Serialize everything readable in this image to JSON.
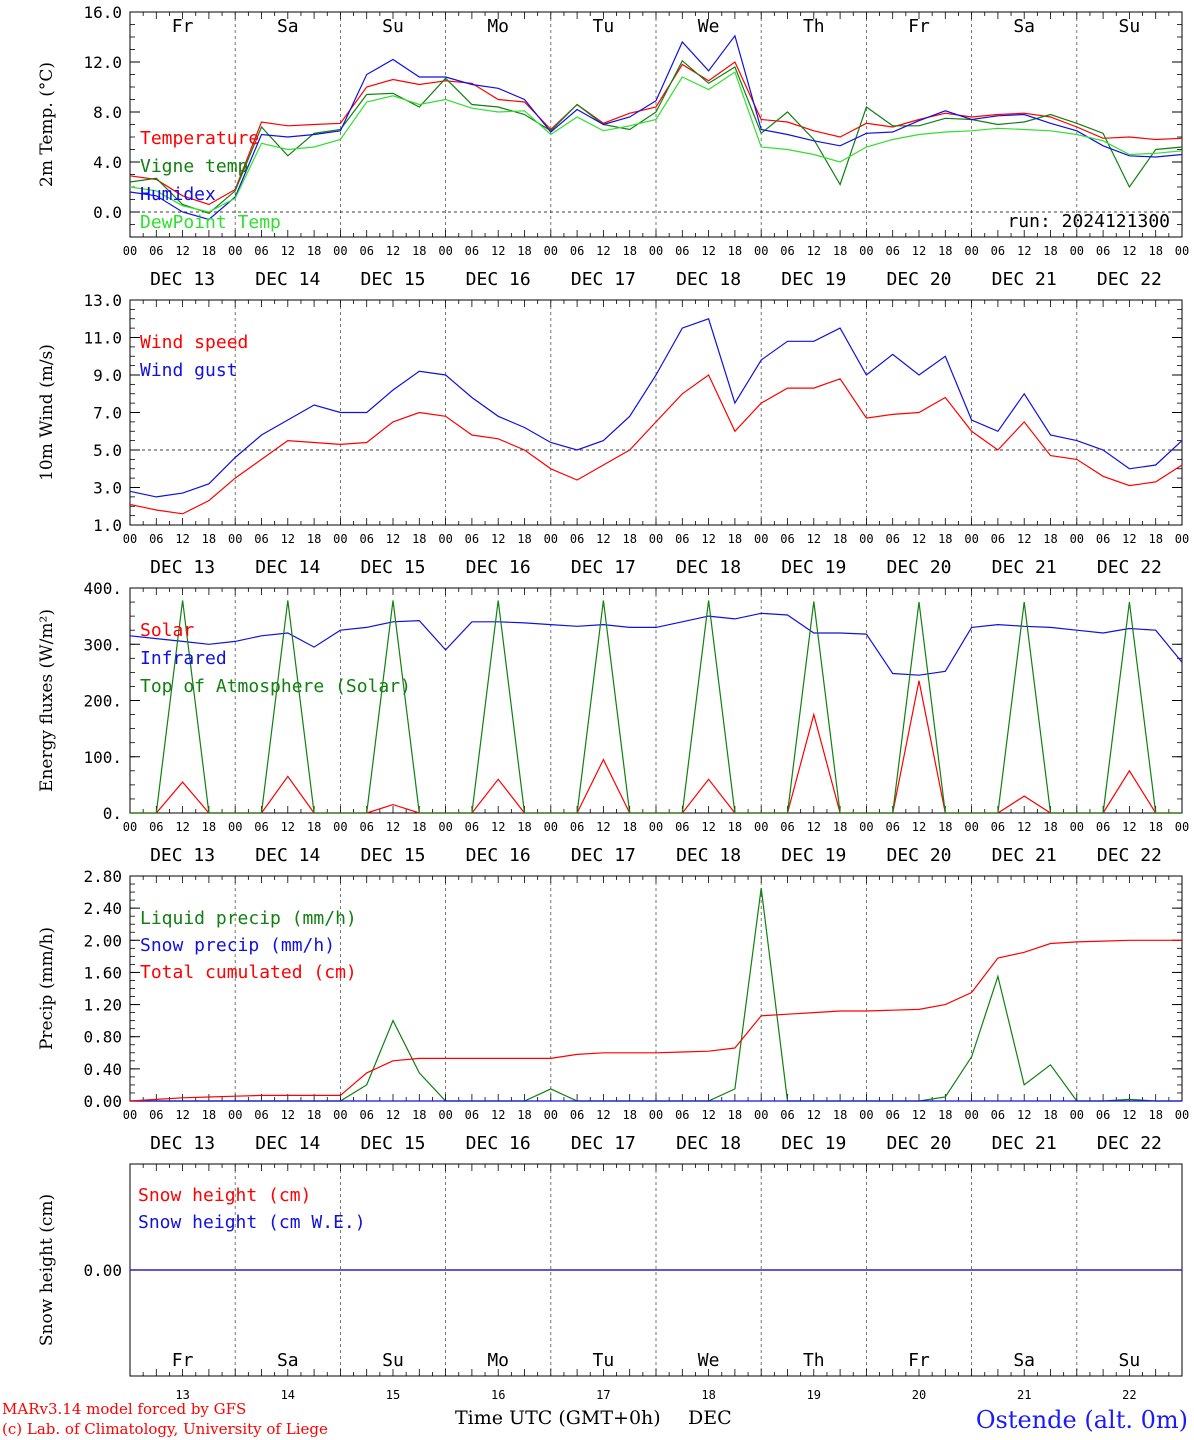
{
  "colors": {
    "red": "#ff0000",
    "green": "#108010",
    "blue": "#1010e0",
    "lightgreen": "#30e030"
  },
  "days": [
    "13",
    "14",
    "15",
    "16",
    "17",
    "18",
    "19",
    "20",
    "21",
    "22"
  ],
  "weekdays": [
    {
      "label": "Fr",
      "color": "#000000"
    },
    {
      "label": "Sa",
      "color": "#ff0000"
    },
    {
      "label": "Su",
      "color": "#ff0000"
    },
    {
      "label": "Mo",
      "color": "#000000"
    },
    {
      "label": "Tu",
      "color": "#000000"
    },
    {
      "label": "We",
      "color": "#000000"
    },
    {
      "label": "Th",
      "color": "#000000"
    },
    {
      "label": "Fr",
      "color": "#000000"
    },
    {
      "label": "Sa",
      "color": "#ff0000"
    },
    {
      "label": "Su",
      "color": "#ff0000"
    }
  ],
  "hour_labels": [
    "00",
    "06",
    "12",
    "18"
  ],
  "date_labels": [
    "DEC 13",
    "DEC 14",
    "DEC 15",
    "DEC 16",
    "DEC 17",
    "DEC 18",
    "DEC 19",
    "DEC 20",
    "DEC 21",
    "DEC 22"
  ],
  "footer": {
    "model": "MARv3.14 model forced by GFS",
    "lab": "(c) Lab. of Climatology, University of Liege",
    "xtitle": "Time UTC (GMT+0h)",
    "month": "DEC",
    "station": "Ostende (alt. 0m)"
  },
  "chart_data": [
    {
      "type": "line",
      "ylabel": "2m Temp. (°C)",
      "ylim": [
        -2,
        16
      ],
      "yticks": [
        "16.0",
        "12.0",
        "8.0",
        "4.0",
        "0.0"
      ],
      "ytick_values": [
        16,
        12,
        8,
        4,
        0
      ],
      "dashed_y": 0,
      "annotation": "run: 2024121300",
      "x": [
        0,
        6,
        12,
        18,
        24,
        30,
        36,
        42,
        48,
        54,
        60,
        66,
        72,
        78,
        84,
        90,
        96,
        102,
        108,
        114,
        120,
        126,
        132,
        138,
        144,
        150,
        156,
        162,
        168,
        174,
        180,
        186,
        192,
        198,
        204,
        210,
        216,
        222,
        228,
        234,
        240
      ],
      "series": [
        {
          "name": "Temperature",
          "color": "#ff0000",
          "values": [
            2.9,
            2.6,
            1.3,
            0.6,
            1.8,
            7.2,
            6.9,
            7.0,
            7.1,
            10.0,
            10.6,
            10.2,
            10.5,
            10.3,
            9.0,
            8.8,
            6.6,
            8.6,
            7.1,
            7.9,
            8.4,
            11.8,
            10.5,
            12.0,
            7.4,
            7.2,
            6.5,
            6.0,
            7.1,
            6.8,
            7.4,
            7.9,
            7.6,
            7.8,
            7.9,
            7.6,
            6.8,
            5.9,
            6.0,
            5.8,
            5.9
          ]
        },
        {
          "name": "Vigne temp",
          "color": "#108010",
          "values": [
            2.4,
            2.7,
            0.6,
            -0.1,
            1.7,
            6.8,
            4.5,
            6.3,
            6.6,
            9.4,
            9.5,
            8.4,
            10.7,
            8.6,
            8.4,
            7.8,
            6.5,
            8.6,
            7.0,
            6.6,
            8.0,
            12.1,
            10.3,
            11.6,
            6.3,
            8.0,
            5.8,
            2.2,
            8.4,
            6.9,
            6.9,
            7.5,
            7.4,
            7.0,
            7.2,
            7.8,
            7.1,
            6.3,
            2.0,
            5.0,
            5.2
          ]
        },
        {
          "name": "Humidex",
          "color": "#1010e0",
          "values": [
            1.6,
            1.3,
            0.0,
            -0.6,
            1.2,
            6.2,
            6.0,
            6.2,
            6.5,
            11.0,
            12.2,
            10.8,
            10.8,
            10.2,
            9.9,
            9.0,
            6.4,
            8.2,
            7.0,
            7.6,
            8.9,
            13.6,
            11.3,
            14.1,
            6.6,
            6.2,
            5.7,
            5.3,
            6.3,
            6.4,
            7.3,
            8.1,
            7.4,
            7.7,
            7.8,
            7.1,
            6.5,
            5.3,
            4.5,
            4.4,
            4.6
          ]
        },
        {
          "name": "DewPoint Temp",
          "color": "#30e030",
          "values": [
            2.0,
            1.7,
            0.5,
            0.0,
            1.1,
            5.5,
            5.0,
            5.2,
            5.8,
            8.8,
            9.3,
            8.6,
            9.0,
            8.3,
            8.0,
            8.1,
            6.2,
            7.6,
            6.5,
            6.9,
            7.4,
            10.8,
            9.8,
            11.2,
            5.2,
            5.0,
            4.6,
            4.0,
            5.2,
            5.8,
            6.2,
            6.4,
            6.5,
            6.7,
            6.6,
            6.5,
            6.2,
            5.7,
            4.6,
            4.7,
            4.9
          ]
        }
      ]
    },
    {
      "type": "line",
      "ylabel": "10m Wind (m/s)",
      "ylim": [
        1,
        13
      ],
      "yticks": [
        "13.0",
        "11.0",
        "9.0",
        "7.0",
        "5.0",
        "3.0",
        "1.0"
      ],
      "ytick_values": [
        13,
        11,
        9,
        7,
        5,
        3,
        1
      ],
      "dashed_y": 5,
      "x": [
        0,
        6,
        12,
        18,
        24,
        30,
        36,
        42,
        48,
        54,
        60,
        66,
        72,
        78,
        84,
        90,
        96,
        102,
        108,
        114,
        120,
        126,
        132,
        138,
        144,
        150,
        156,
        162,
        168,
        174,
        180,
        186,
        192,
        198,
        204,
        210,
        216,
        222,
        228,
        234,
        240
      ],
      "series": [
        {
          "name": "Wind speed",
          "color": "#ff0000",
          "values": [
            2.1,
            1.8,
            1.6,
            2.3,
            3.5,
            4.5,
            5.5,
            5.4,
            5.3,
            5.4,
            6.5,
            7.0,
            6.8,
            5.8,
            5.6,
            5.0,
            4.0,
            3.4,
            4.2,
            5.0,
            6.5,
            8.0,
            9.0,
            6.0,
            7.5,
            8.3,
            8.3,
            8.8,
            6.7,
            6.9,
            7.0,
            7.8,
            6.0,
            5.0,
            6.5,
            4.7,
            4.5,
            3.6,
            3.1,
            3.3,
            4.2
          ]
        },
        {
          "name": "Wind gust",
          "color": "#1010e0",
          "values": [
            2.8,
            2.5,
            2.7,
            3.2,
            4.6,
            5.8,
            6.6,
            7.4,
            7.0,
            7.0,
            8.2,
            9.2,
            9.0,
            7.8,
            6.8,
            6.2,
            5.4,
            5.0,
            5.5,
            6.8,
            9.0,
            11.5,
            12.0,
            7.5,
            9.8,
            10.8,
            10.8,
            11.5,
            9.0,
            10.1,
            9.0,
            10.0,
            6.6,
            6.0,
            8.0,
            5.8,
            5.5,
            5.0,
            4.0,
            4.2,
            5.5
          ]
        }
      ]
    },
    {
      "type": "line",
      "ylabel": "Energy fluxes (W/m²)",
      "ylim": [
        0,
        400
      ],
      "yticks": [
        "400.",
        "300.",
        "200.",
        "100.",
        "0."
      ],
      "ytick_values": [
        400,
        300,
        200,
        100,
        0
      ],
      "x": [
        0,
        6,
        12,
        18,
        24,
        30,
        36,
        42,
        48,
        54,
        60,
        66,
        72,
        78,
        84,
        90,
        96,
        102,
        108,
        114,
        120,
        126,
        132,
        138,
        144,
        150,
        156,
        162,
        168,
        174,
        180,
        186,
        192,
        198,
        204,
        210,
        216,
        222,
        228,
        234,
        240
      ],
      "series": [
        {
          "name": "Solar",
          "color": "#ff0000",
          "values": [
            0,
            0,
            55,
            0,
            0,
            0,
            65,
            0,
            0,
            0,
            15,
            0,
            0,
            0,
            60,
            0,
            0,
            0,
            95,
            0,
            0,
            0,
            60,
            0,
            0,
            0,
            175,
            0,
            0,
            0,
            235,
            0,
            0,
            0,
            30,
            0,
            0,
            0,
            75,
            0,
            0
          ]
        },
        {
          "name": "Infrared",
          "color": "#1010e0",
          "values": [
            315,
            310,
            305,
            300,
            305,
            315,
            320,
            295,
            325,
            330,
            340,
            342,
            290,
            340,
            340,
            338,
            335,
            332,
            335,
            330,
            330,
            340,
            350,
            345,
            355,
            352,
            320,
            320,
            318,
            248,
            245,
            252,
            330,
            335,
            332,
            330,
            325,
            320,
            328,
            325,
            268
          ]
        },
        {
          "name": "Top of Atmosphere (Solar)",
          "color": "#108010",
          "values": [
            0,
            0,
            378,
            0,
            0,
            0,
            378,
            0,
            0,
            0,
            378,
            0,
            0,
            0,
            378,
            0,
            0,
            0,
            378,
            0,
            0,
            0,
            378,
            0,
            0,
            0,
            376,
            0,
            0,
            0,
            375,
            0,
            0,
            0,
            375,
            0,
            0,
            0,
            375,
            0,
            0
          ]
        }
      ]
    },
    {
      "type": "line",
      "ylabel": "Precip (mm/h)",
      "ylim": [
        0,
        2.8
      ],
      "yticks": [
        "2.80",
        "2.40",
        "2.00",
        "1.60",
        "1.20",
        "0.80",
        "0.40",
        "0.00"
      ],
      "ytick_values": [
        2.8,
        2.4,
        2.0,
        1.6,
        1.2,
        0.8,
        0.4,
        0.0
      ],
      "x": [
        0,
        6,
        12,
        18,
        24,
        30,
        36,
        42,
        48,
        54,
        60,
        66,
        72,
        78,
        84,
        90,
        96,
        102,
        108,
        114,
        120,
        126,
        132,
        138,
        144,
        150,
        156,
        162,
        168,
        174,
        180,
        186,
        192,
        198,
        204,
        210,
        216,
        222,
        228,
        234,
        240
      ],
      "series": [
        {
          "name": "Liquid precip (mm/h)",
          "color": "#108010",
          "values": [
            0,
            0,
            0,
            0,
            0,
            0,
            0,
            0,
            0,
            0.2,
            1.0,
            0.35,
            0,
            0,
            0,
            0,
            0.15,
            0,
            0,
            0,
            0,
            0,
            0,
            0.15,
            2.65,
            0,
            0,
            0,
            0,
            0,
            0,
            0.05,
            0.55,
            1.55,
            0.2,
            0.45,
            0,
            0,
            0.02,
            0,
            0
          ]
        },
        {
          "name": "Snow precip (mm/h)",
          "color": "#1010e0",
          "values": [
            0,
            0,
            0,
            0,
            0,
            0,
            0,
            0,
            0,
            0,
            0,
            0,
            0,
            0,
            0,
            0,
            0,
            0,
            0,
            0,
            0,
            0,
            0,
            0,
            0,
            0,
            0,
            0,
            0,
            0,
            0,
            0,
            0,
            0,
            0,
            0,
            0,
            0,
            0,
            0,
            0
          ]
        },
        {
          "name": "Total cumulated (cm)",
          "color": "#ff0000",
          "values": [
            0.0,
            0.02,
            0.04,
            0.05,
            0.06,
            0.07,
            0.07,
            0.07,
            0.07,
            0.35,
            0.5,
            0.53,
            0.53,
            0.53,
            0.53,
            0.53,
            0.53,
            0.58,
            0.6,
            0.6,
            0.6,
            0.61,
            0.62,
            0.66,
            1.06,
            1.08,
            1.1,
            1.12,
            1.12,
            1.13,
            1.14,
            1.2,
            1.35,
            1.78,
            1.85,
            1.96,
            1.98,
            1.99,
            2.0,
            2.0,
            2.0
          ]
        }
      ]
    },
    {
      "type": "line",
      "ylabel": "Snow height (cm)",
      "ylim": [
        -1,
        1
      ],
      "yticks": [
        "0.00"
      ],
      "ytick_values": [
        0
      ],
      "x": [
        0,
        240
      ],
      "series": [
        {
          "name": "Snow height (cm)",
          "color": "#ff0000",
          "values": [
            0,
            0
          ]
        },
        {
          "name": "Snow height (cm W.E.)",
          "color": "#1010e0",
          "values": [
            0,
            0
          ]
        }
      ]
    }
  ]
}
